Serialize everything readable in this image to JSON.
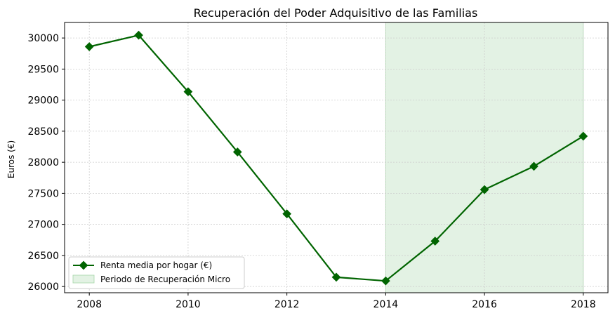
{
  "chart_data": {
    "type": "line",
    "title": "Recuperación del Poder Adquisitivo de las Familias",
    "xlabel": "",
    "ylabel": "Euros (€)",
    "x": [
      2008,
      2009,
      2010,
      2011,
      2012,
      2013,
      2014,
      2015,
      2016,
      2017,
      2018
    ],
    "series": [
      {
        "name": "Renta media por hogar (€)",
        "values": [
          29860,
          30045,
          29135,
          28165,
          27170,
          26150,
          26090,
          26730,
          27560,
          27935,
          28420
        ],
        "color": "#006400",
        "marker": "diamond"
      }
    ],
    "shaded_region": {
      "name": "Periodo de Recuperación Micro",
      "x_start": 2014,
      "x_end": 2018,
      "color": "#c8e6c9"
    },
    "x_ticks": [
      2008,
      2010,
      2012,
      2014,
      2016,
      2018
    ],
    "y_ticks": [
      26000,
      26500,
      27000,
      27500,
      28000,
      28500,
      29000,
      29500,
      30000
    ],
    "xlim": [
      2007.5,
      2018.5
    ],
    "ylim": [
      25900,
      30250
    ],
    "grid": true,
    "legend_position": "lower-left"
  }
}
